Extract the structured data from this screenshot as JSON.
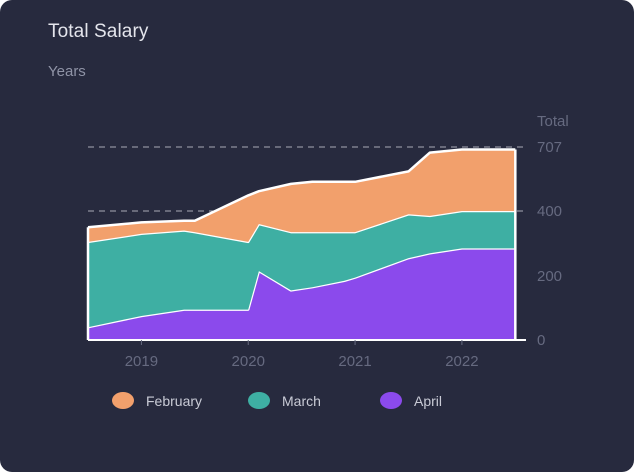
{
  "card": {
    "title": "Total Salary",
    "subtitle": "Years"
  },
  "colors": {
    "background": "#272a3e",
    "february": "#f2a06c",
    "march": "#3eafa3",
    "april": "#8b4aec",
    "outline": "#ffffff"
  },
  "chart_data": {
    "type": "area",
    "stacked": true,
    "title": "Total Salary",
    "xlabel": "Years",
    "ylabel": "Total",
    "x": [
      2018.5,
      2019.0,
      2019.4,
      2019.5,
      2020.0,
      2020.1,
      2020.4,
      2020.6,
      2020.9,
      2021.0,
      2021.5,
      2021.7,
      2022.0,
      2022.3,
      2022.5
    ],
    "xlim": [
      2018.5,
      2022.6
    ],
    "x_ticks": [
      "2019",
      "2020",
      "2021",
      "2022"
    ],
    "x_tick_values": [
      2019,
      2020,
      2021,
      2022
    ],
    "y_ticks": [
      "0",
      "200",
      "400",
      "707"
    ],
    "series": [
      {
        "name": "April",
        "values": [
          40,
          75,
          95,
          95,
          95,
          215,
          155,
          165,
          185,
          195,
          255,
          270,
          285,
          285,
          285
        ]
      },
      {
        "name": "March",
        "values": [
          265,
          255,
          245,
          240,
          210,
          145,
          180,
          170,
          150,
          140,
          135,
          115,
          115,
          115,
          115
        ]
      },
      {
        "name": "February",
        "values": [
          45,
          35,
          30,
          35,
          170,
          135,
          195,
          205,
          205,
          205,
          200,
          295,
          295,
          295,
          295
        ]
      }
    ],
    "gridlines": "dashed, at 400 and 707 only",
    "legend_position": "bottom",
    "legend": [
      "February",
      "March",
      "April"
    ]
  }
}
